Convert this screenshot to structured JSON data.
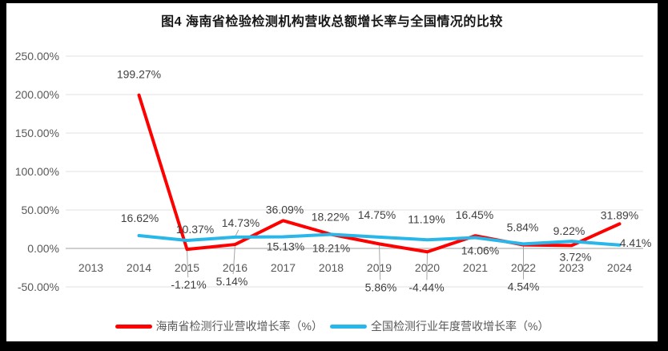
{
  "chart_data": {
    "type": "line",
    "title": "图4  海南省检验检测机构营收总额增长率与全国情况的比较",
    "x": [
      2013,
      2014,
      2015,
      2016,
      2017,
      2018,
      2019,
      2020,
      2021,
      2022,
      2023,
      2024
    ],
    "ylim": [
      -50,
      250
    ],
    "ytick_step": 50,
    "yticks_labels": [
      "250.00%",
      "200.00%",
      "150.00%",
      "100.00%",
      "50.00%",
      "0.00%",
      "-50.00%"
    ],
    "grid": true,
    "legend_position": "bottom",
    "axis_label_color": "#595959",
    "data_label_color": "#3f3f3f",
    "gridline_color": "#e2e2e2",
    "zero_line_color": "#bfbfbf",
    "leader_line_color": "#a6a6a6",
    "series": [
      {
        "name": "海南省检测行业营收增长率（%）",
        "color": "#fe0000",
        "values": [
          null,
          199.27,
          -1.21,
          5.14,
          36.09,
          18.22,
          5.86,
          -4.44,
          16.45,
          4.54,
          3.72,
          31.89
        ],
        "label_dx": [
          null,
          0,
          2,
          -4,
          2,
          -1,
          2,
          -1,
          -1,
          0,
          5,
          0
        ],
        "label_dy": [
          null,
          -26,
          44,
          46,
          -14,
          -22,
          54,
          44,
          -26,
          52,
          14,
          -11
        ],
        "leader_years": [
          2015,
          2016,
          2019,
          2020,
          2022
        ]
      },
      {
        "name": "全国检测行业年度营收增长率（%）",
        "color": "#29b6e8",
        "values": [
          null,
          16.62,
          10.37,
          14.73,
          15.13,
          18.21,
          14.75,
          11.19,
          14.06,
          5.84,
          9.22,
          4.41
        ],
        "label_dx": [
          null,
          1,
          10,
          7,
          3,
          0,
          -3,
          -1,
          6,
          -1,
          -3,
          20
        ],
        "label_dy": [
          null,
          -22,
          -14,
          -18,
          12,
          17,
          -28,
          -26,
          16,
          -21,
          -13,
          -3
        ],
        "leader_years": [
          2016
        ]
      }
    ]
  }
}
